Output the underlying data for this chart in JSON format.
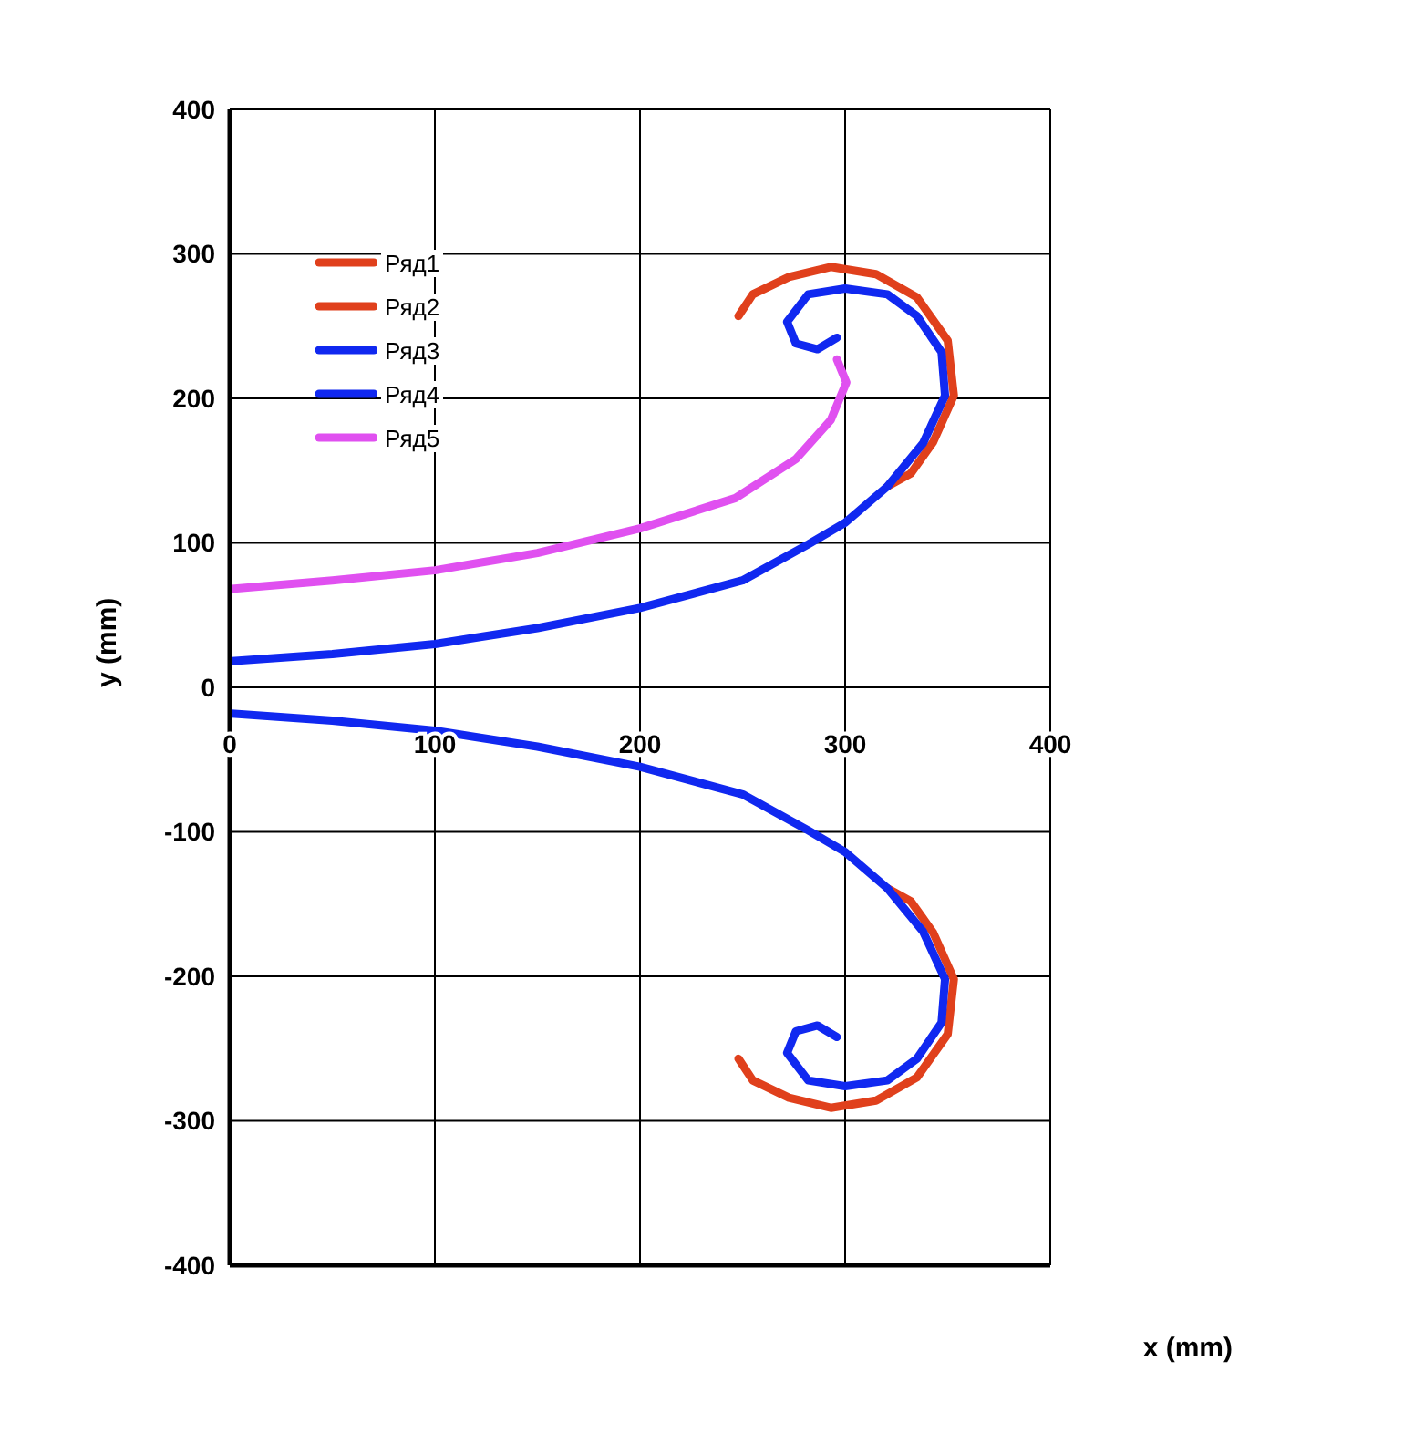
{
  "chart_data": {
    "type": "line",
    "xlabel": "x  (mm)",
    "ylabel": "y  (mm)",
    "xlim": [
      0,
      400
    ],
    "ylim": [
      -400,
      400
    ],
    "xticks": [
      0,
      100,
      200,
      300,
      400
    ],
    "yticks": [
      -400,
      -300,
      -200,
      -100,
      0,
      100,
      200,
      300,
      400
    ],
    "grid": true,
    "legend": "top left",
    "marker": "none",
    "line_style": "solid",
    "series": [
      {
        "name": "Ряд1",
        "color": "#e0401c",
        "x": [
          320.6,
          332,
          343,
          353,
          350,
          335,
          315,
          293,
          272.6,
          255,
          248
        ],
        "values": [
          139,
          148,
          170,
          202,
          240,
          270,
          286,
          291,
          284,
          272,
          257
        ]
      },
      {
        "name": "Ряд2",
        "color": "#e0401c",
        "x": [
          320.6,
          332,
          343,
          353,
          350,
          335,
          315,
          293,
          272.6,
          255,
          248
        ],
        "values": [
          -139,
          -148,
          -170,
          -202,
          -240,
          -270,
          -286,
          -291,
          -284,
          -272,
          -257
        ]
      },
      {
        "name": "Ряд3",
        "color": "#1028f0",
        "x": [
          0,
          50,
          100,
          150,
          200,
          250,
          282,
          300,
          320.6,
          338,
          348.7,
          347,
          335,
          320.6,
          300,
          282,
          271.7,
          276,
          286.5,
          296
        ],
        "values": [
          18,
          23,
          30,
          41,
          55,
          74,
          99,
          114,
          139,
          169,
          202,
          232,
          257,
          272,
          276,
          272,
          253,
          238,
          234,
          242
        ]
      },
      {
        "name": "Ряд4",
        "color": "#1028f0",
        "x": [
          0,
          50,
          100,
          150,
          200,
          250,
          282,
          300,
          320.6,
          338,
          348.7,
          347,
          335,
          320.6,
          300,
          282,
          271.7,
          276,
          286.5,
          296
        ],
        "values": [
          -18,
          -23,
          -30,
          -41,
          -55,
          -74,
          -99,
          -114,
          -139,
          -169,
          -202,
          -232,
          -257,
          -272,
          -276,
          -272,
          -253,
          -238,
          -234,
          -242
        ]
      },
      {
        "name": "Ряд5",
        "color": "#e050f0",
        "x": [
          0,
          50,
          100,
          150,
          200,
          246.5,
          276,
          293,
          300.6,
          296
        ],
        "values": [
          68,
          74,
          81,
          93,
          110,
          131,
          158,
          185,
          211,
          227
        ]
      }
    ]
  }
}
